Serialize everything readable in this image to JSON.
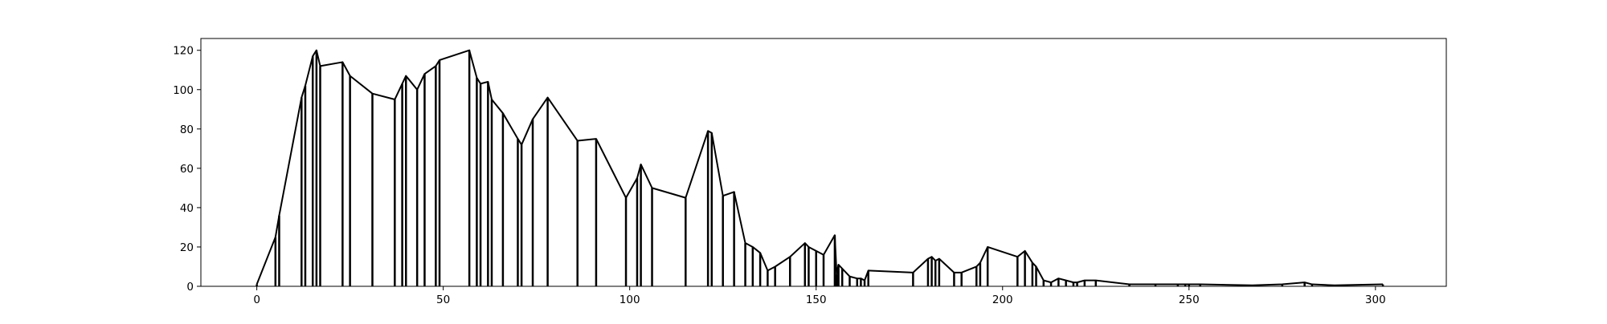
{
  "chart_data": {
    "type": "line",
    "title": "",
    "xlabel": "",
    "ylabel": "",
    "xlim": [
      -15,
      319
    ],
    "ylim": [
      0,
      126
    ],
    "xticks": [
      0,
      50,
      100,
      150,
      200,
      250,
      300
    ],
    "yticks": [
      0,
      20,
      40,
      60,
      80,
      100,
      120
    ],
    "grid": false,
    "legend": "none",
    "series": [
      {
        "color": "#000000",
        "style": "line with vertical drop lines at each point",
        "x": [
          0,
          5,
          6,
          12,
          13,
          15,
          16,
          17,
          23,
          25,
          31,
          37,
          39,
          40,
          43,
          45,
          48,
          49,
          57,
          59,
          60,
          62,
          63,
          66,
          70,
          71,
          74,
          78,
          86,
          91,
          99,
          102,
          103,
          106,
          115,
          121,
          122,
          125,
          128,
          131,
          133,
          135,
          137,
          139,
          143,
          147,
          148,
          150,
          152,
          155,
          155.5,
          156,
          157,
          159,
          161,
          162,
          163,
          164,
          176,
          180,
          181,
          182,
          183,
          187,
          189,
          193,
          194,
          196,
          204,
          206,
          208,
          209,
          211,
          213,
          215,
          217,
          219,
          220,
          222,
          225,
          234,
          241,
          247,
          249,
          250,
          253,
          267,
          275,
          281,
          283,
          289,
          302
        ],
        "y": [
          1,
          25,
          36,
          96,
          102,
          117,
          120,
          112,
          114,
          107,
          98,
          95,
          103,
          107,
          100,
          108,
          112,
          115,
          120,
          106,
          103,
          104,
          95,
          88,
          75,
          72,
          85,
          96,
          74,
          75,
          45,
          55,
          62,
          50,
          45,
          79,
          78,
          46,
          48,
          22,
          20,
          17,
          8,
          10,
          15,
          22,
          20,
          18,
          16,
          26,
          6,
          11,
          9,
          5,
          4,
          4,
          3,
          8,
          7,
          14,
          15,
          13,
          14,
          7,
          7,
          10,
          12,
          20,
          15,
          18,
          12,
          10,
          3,
          2,
          4,
          3,
          2,
          2,
          3,
          3,
          1,
          1,
          1,
          1,
          1,
          1,
          0.5,
          1,
          2,
          1,
          0.5,
          1
        ]
      }
    ]
  }
}
